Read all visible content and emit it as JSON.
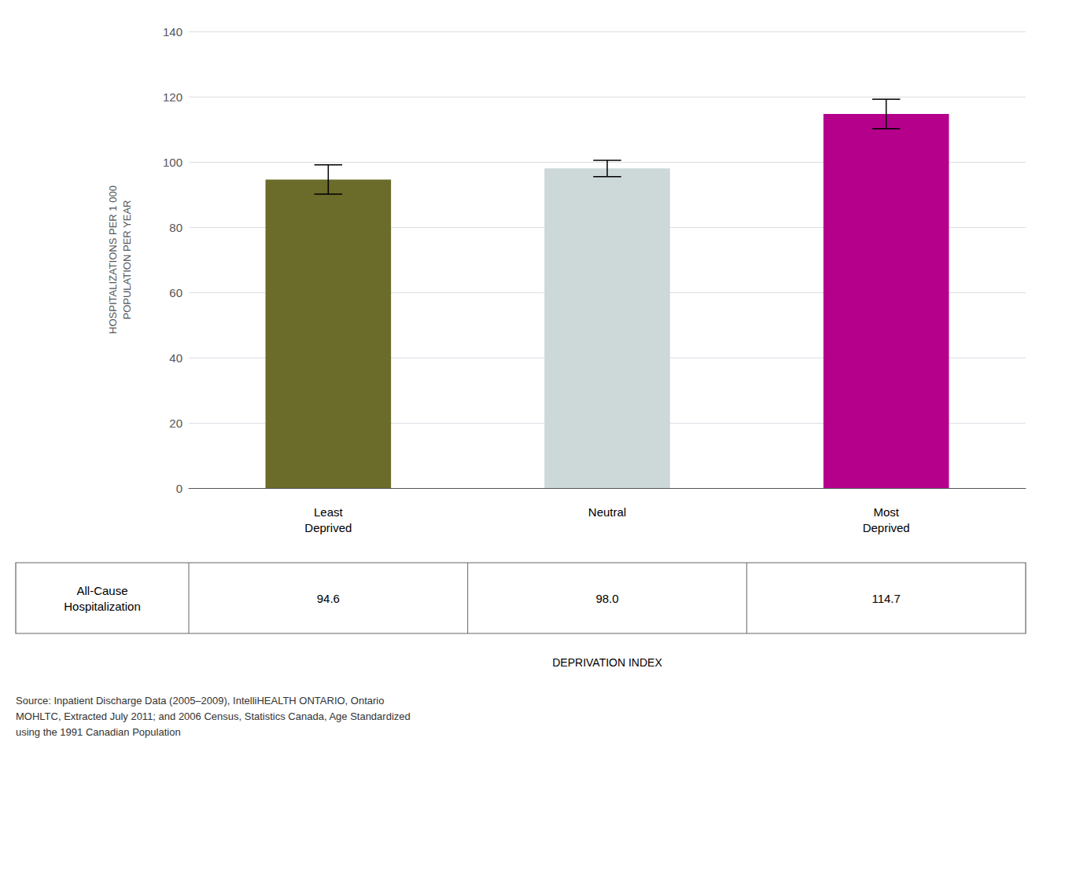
{
  "chart_data": {
    "type": "bar",
    "categories": [
      "Least\nDeprived",
      "Neutral",
      "Most\nDeprived"
    ],
    "values": [
      94.6,
      98.0,
      114.7
    ],
    "errors": [
      4.5,
      2.5,
      4.5
    ],
    "colors": [
      "#6b6b2a",
      "#cdd8d8",
      "#b5008c"
    ],
    "ylabel": "HOSPITALIZATIONS PER 1 000\nPOPULATION PER YEAR",
    "xlabel": "DEPRIVATION INDEX",
    "ylim": [
      0,
      140
    ],
    "yticks": [
      0,
      20,
      40,
      60,
      80,
      100,
      120,
      140
    ],
    "grid": true,
    "table_row_label": "All-Cause\nHospitalization",
    "table_values": [
      "94.6",
      "98.0",
      "114.7"
    ],
    "source": "Source: Inpatient Discharge Data (2005–2009), IntelliHEALTH ONTARIO, Ontario\nMOHLTC, Extracted July 2011; and 2006 Census, Statistics Canada, Age Standardized\nusing the 1991 Canadian Population"
  }
}
